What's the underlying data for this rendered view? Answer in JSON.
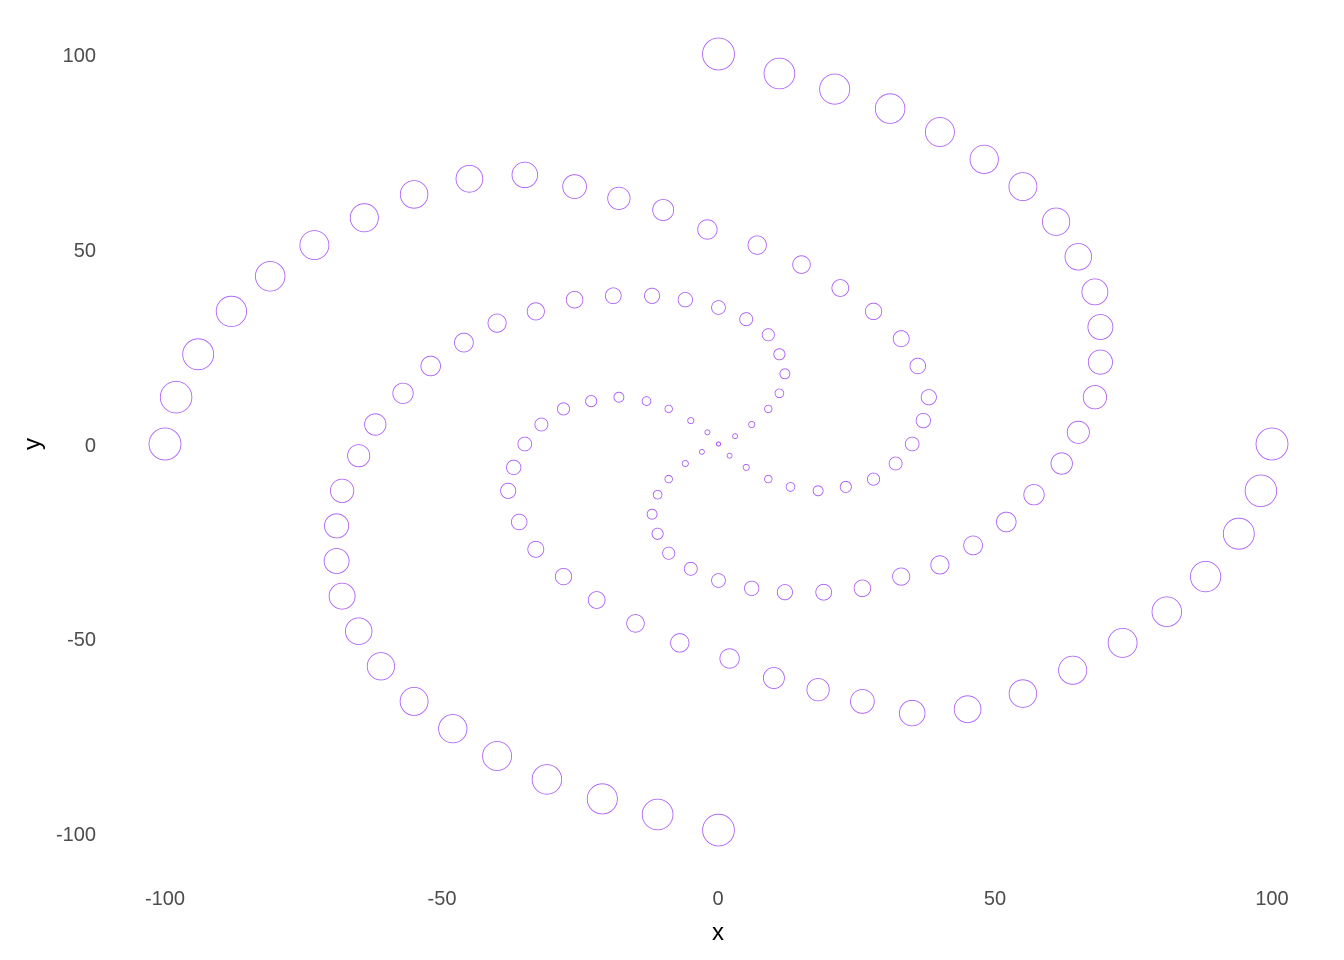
{
  "chart_data": {
    "type": "scatter",
    "title": "",
    "xlabel": "x",
    "ylabel": "y",
    "xlim": [
      -100,
      100
    ],
    "ylim": [
      -100,
      100
    ],
    "x_ticks": [
      -100,
      -50,
      0,
      50,
      100
    ],
    "y_ticks": [
      -100,
      -50,
      0,
      50,
      100
    ],
    "x_tick_labels": [
      "-100",
      "-50",
      "0",
      "50",
      "100"
    ],
    "y_tick_labels": [
      "-100",
      "-50",
      "0",
      "50",
      "100"
    ],
    "grid": false,
    "legend": "none",
    "marker": "hollow-circle",
    "marker_size": "increases with distance from origin",
    "color": "#a855f7",
    "series": [
      {
        "values": [
          {
            "x": 0,
            "y": 0
          },
          {
            "x": 3,
            "y": 2
          },
          {
            "x": 6,
            "y": 5
          },
          {
            "x": 9,
            "y": 9
          },
          {
            "x": 11,
            "y": 13
          },
          {
            "x": 12,
            "y": 18
          },
          {
            "x": 11,
            "y": 23
          },
          {
            "x": 9,
            "y": 28
          },
          {
            "x": 5,
            "y": 32
          },
          {
            "x": 0,
            "y": 35
          },
          {
            "x": -6,
            "y": 37
          },
          {
            "x": -12,
            "y": 38
          },
          {
            "x": -19,
            "y": 38
          },
          {
            "x": -26,
            "y": 37
          },
          {
            "x": -33,
            "y": 34
          },
          {
            "x": -40,
            "y": 31
          },
          {
            "x": -46,
            "y": 26
          },
          {
            "x": -52,
            "y": 20
          },
          {
            "x": -57,
            "y": 13
          },
          {
            "x": -62,
            "y": 5
          },
          {
            "x": -65,
            "y": -3
          },
          {
            "x": -68,
            "y": -12
          },
          {
            "x": -69,
            "y": -21
          },
          {
            "x": -69,
            "y": -30
          },
          {
            "x": -68,
            "y": -39
          },
          {
            "x": -65,
            "y": -48
          },
          {
            "x": -61,
            "y": -57
          },
          {
            "x": -55,
            "y": -66
          },
          {
            "x": -48,
            "y": -73
          },
          {
            "x": -40,
            "y": -80
          },
          {
            "x": -31,
            "y": -86
          },
          {
            "x": -21,
            "y": -91
          },
          {
            "x": -11,
            "y": -95
          },
          {
            "x": 0,
            "y": -99
          }
        ]
      },
      {
        "values": [
          {
            "x": 0,
            "y": 0
          },
          {
            "x": -3,
            "y": -2
          },
          {
            "x": -6,
            "y": -5
          },
          {
            "x": -9,
            "y": -9
          },
          {
            "x": -11,
            "y": -13
          },
          {
            "x": -12,
            "y": -18
          },
          {
            "x": -11,
            "y": -23
          },
          {
            "x": -9,
            "y": -28
          },
          {
            "x": -5,
            "y": -32
          },
          {
            "x": 0,
            "y": -35
          },
          {
            "x": 6,
            "y": -37
          },
          {
            "x": 12,
            "y": -38
          },
          {
            "x": 19,
            "y": -38
          },
          {
            "x": 26,
            "y": -37
          },
          {
            "x": 33,
            "y": -34
          },
          {
            "x": 40,
            "y": -31
          },
          {
            "x": 46,
            "y": -26
          },
          {
            "x": 52,
            "y": -20
          },
          {
            "x": 57,
            "y": -13
          },
          {
            "x": 62,
            "y": -5
          },
          {
            "x": 65,
            "y": 3
          },
          {
            "x": 68,
            "y": 12
          },
          {
            "x": 69,
            "y": 21
          },
          {
            "x": 69,
            "y": 30
          },
          {
            "x": 68,
            "y": 39
          },
          {
            "x": 65,
            "y": 48
          },
          {
            "x": 61,
            "y": 57
          },
          {
            "x": 55,
            "y": 66
          },
          {
            "x": 48,
            "y": 73
          },
          {
            "x": 40,
            "y": 80
          },
          {
            "x": 31,
            "y": 86
          },
          {
            "x": 21,
            "y": 91
          },
          {
            "x": 11,
            "y": 95
          },
          {
            "x": 0,
            "y": 100
          }
        ]
      },
      {
        "values": [
          {
            "x": 0,
            "y": 0
          },
          {
            "x": 2,
            "y": -3
          },
          {
            "x": 5,
            "y": -6
          },
          {
            "x": 9,
            "y": -9
          },
          {
            "x": 13,
            "y": -11
          },
          {
            "x": 18,
            "y": -12
          },
          {
            "x": 23,
            "y": -11
          },
          {
            "x": 28,
            "y": -9
          },
          {
            "x": 32,
            "y": -5
          },
          {
            "x": 35,
            "y": 0
          },
          {
            "x": 37,
            "y": 6
          },
          {
            "x": 38,
            "y": 12
          },
          {
            "x": 36,
            "y": 20
          },
          {
            "x": 33,
            "y": 27
          },
          {
            "x": 28,
            "y": 34
          },
          {
            "x": 22,
            "y": 40
          },
          {
            "x": 15,
            "y": 46
          },
          {
            "x": 7,
            "y": 51
          },
          {
            "x": -2,
            "y": 55
          },
          {
            "x": -10,
            "y": 60
          },
          {
            "x": -18,
            "y": 63
          },
          {
            "x": -26,
            "y": 66
          },
          {
            "x": -35,
            "y": 69
          },
          {
            "x": -45,
            "y": 68
          },
          {
            "x": -55,
            "y": 64
          },
          {
            "x": -64,
            "y": 58
          },
          {
            "x": -73,
            "y": 51
          },
          {
            "x": -81,
            "y": 43
          },
          {
            "x": -88,
            "y": 34
          },
          {
            "x": -94,
            "y": 23
          },
          {
            "x": -98,
            "y": 12
          },
          {
            "x": -100,
            "y": 0
          }
        ]
      },
      {
        "values": [
          {
            "x": 0,
            "y": 0
          },
          {
            "x": -2,
            "y": 3
          },
          {
            "x": -5,
            "y": 6
          },
          {
            "x": -9,
            "y": 9
          },
          {
            "x": -13,
            "y": 11
          },
          {
            "x": -18,
            "y": 12
          },
          {
            "x": -23,
            "y": 11
          },
          {
            "x": -28,
            "y": 9
          },
          {
            "x": -32,
            "y": 5
          },
          {
            "x": -35,
            "y": 0
          },
          {
            "x": -37,
            "y": -6
          },
          {
            "x": -38,
            "y": -12
          },
          {
            "x": -36,
            "y": -20
          },
          {
            "x": -33,
            "y": -27
          },
          {
            "x": -28,
            "y": -34
          },
          {
            "x": -22,
            "y": -40
          },
          {
            "x": -15,
            "y": -46
          },
          {
            "x": -7,
            "y": -51
          },
          {
            "x": 2,
            "y": -55
          },
          {
            "x": 10,
            "y": -60
          },
          {
            "x": 18,
            "y": -63
          },
          {
            "x": 26,
            "y": -66
          },
          {
            "x": 35,
            "y": -69
          },
          {
            "x": 45,
            "y": -68
          },
          {
            "x": 55,
            "y": -64
          },
          {
            "x": 64,
            "y": -58
          },
          {
            "x": 73,
            "y": -51
          },
          {
            "x": 81,
            "y": -43
          },
          {
            "x": 88,
            "y": -34
          },
          {
            "x": 94,
            "y": -23
          },
          {
            "x": 98,
            "y": -12
          },
          {
            "x": 100,
            "y": 0
          }
        ]
      }
    ]
  }
}
